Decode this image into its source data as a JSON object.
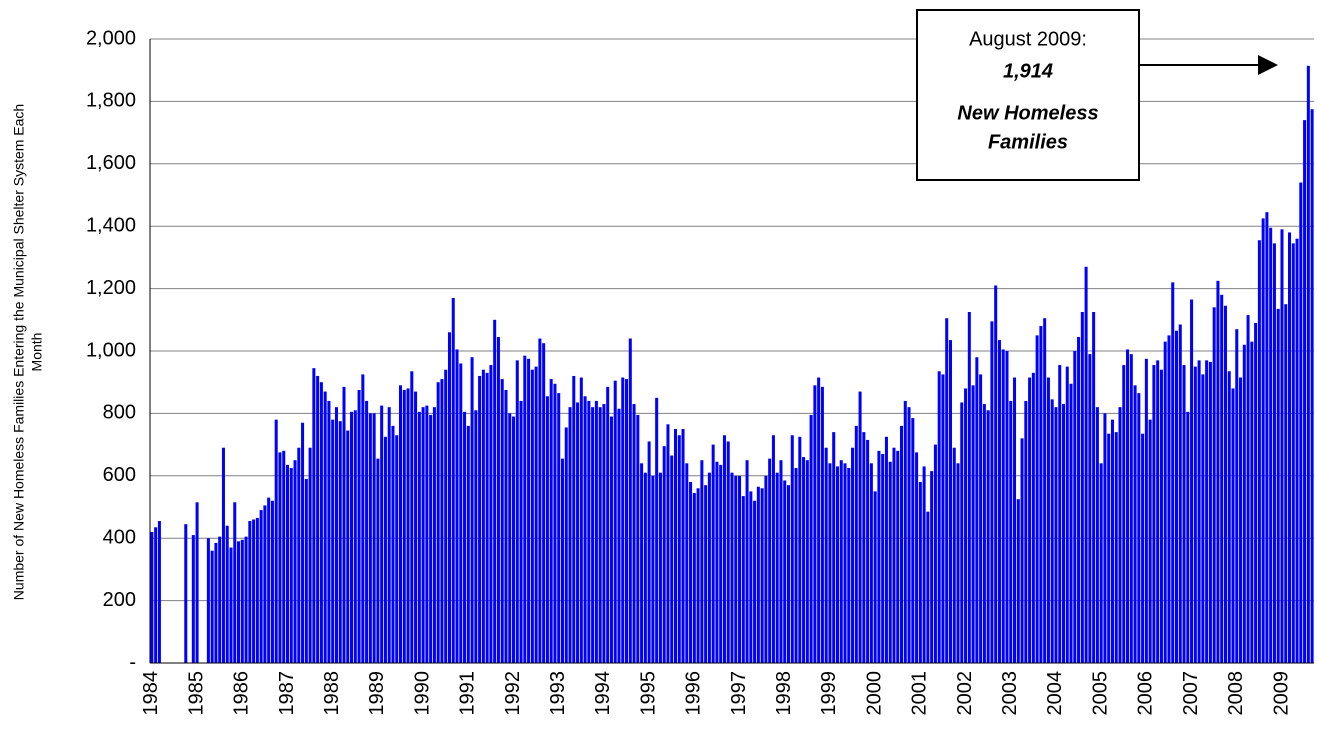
{
  "chart_data": {
    "type": "bar",
    "y_label": [
      "Number of New Homeless Families Entering the Municipal Shelter System Each",
      "Month"
    ],
    "annotation": [
      "August 2009:",
      "1,914",
      "New Homeless",
      "Families"
    ],
    "color": "#0000ff",
    "grid": true,
    "ylim": [
      0,
      2000
    ],
    "yticks": [
      {
        "value": 0,
        "label": "-"
      },
      200,
      400,
      600,
      800,
      {
        "value": 1000,
        "label": "1,000"
      },
      {
        "value": 1200,
        "label": "1,200"
      },
      {
        "value": 1400,
        "label": "1,400"
      },
      {
        "value": 1600,
        "label": "1,600"
      },
      {
        "value": 1800,
        "label": "1,800"
      },
      {
        "value": 2000,
        "label": "2,000"
      }
    ],
    "categories": [
      "1984",
      null,
      null,
      null,
      null,
      null,
      null,
      null,
      null,
      null,
      null,
      null,
      "1985",
      null,
      null,
      null,
      null,
      null,
      null,
      null,
      null,
      null,
      null,
      null,
      "1986",
      null,
      null,
      null,
      null,
      null,
      null,
      null,
      null,
      null,
      null,
      null,
      "1987",
      null,
      null,
      null,
      null,
      null,
      null,
      null,
      null,
      null,
      null,
      null,
      "1988",
      null,
      null,
      null,
      null,
      null,
      null,
      null,
      null,
      null,
      null,
      null,
      "1989",
      null,
      null,
      null,
      null,
      null,
      null,
      null,
      null,
      null,
      null,
      null,
      "1990",
      null,
      null,
      null,
      null,
      null,
      null,
      null,
      null,
      null,
      null,
      null,
      "1991",
      null,
      null,
      null,
      null,
      null,
      null,
      null,
      null,
      null,
      null,
      null,
      "1992",
      null,
      null,
      null,
      null,
      null,
      null,
      null,
      null,
      null,
      null,
      null,
      "1993",
      null,
      null,
      null,
      null,
      null,
      null,
      null,
      null,
      null,
      null,
      null,
      "1994",
      null,
      null,
      null,
      null,
      null,
      null,
      null,
      null,
      null,
      null,
      null,
      "1995",
      null,
      null,
      null,
      null,
      null,
      null,
      null,
      null,
      null,
      null,
      null,
      "1996",
      null,
      null,
      null,
      null,
      null,
      null,
      null,
      null,
      null,
      null,
      null,
      "1997",
      null,
      null,
      null,
      null,
      null,
      null,
      null,
      null,
      null,
      null,
      null,
      "1998",
      null,
      null,
      null,
      null,
      null,
      null,
      null,
      null,
      null,
      null,
      null,
      "1999",
      null,
      null,
      null,
      null,
      null,
      null,
      null,
      null,
      null,
      null,
      null,
      "2000",
      null,
      null,
      null,
      null,
      null,
      null,
      null,
      null,
      null,
      null,
      null,
      "2001",
      null,
      null,
      null,
      null,
      null,
      null,
      null,
      null,
      null,
      null,
      null,
      "2002",
      null,
      null,
      null,
      null,
      null,
      null,
      null,
      null,
      null,
      null,
      null,
      "2003",
      null,
      null,
      null,
      null,
      null,
      null,
      null,
      null,
      null,
      null,
      null,
      "2004",
      null,
      null,
      null,
      null,
      null,
      null,
      null,
      null,
      null,
      null,
      null,
      "2005",
      null,
      null,
      null,
      null,
      null,
      null,
      null,
      null,
      null,
      null,
      null,
      "2006",
      null,
      null,
      null,
      null,
      null,
      null,
      null,
      null,
      null,
      null,
      null,
      "2007",
      null,
      null,
      null,
      null,
      null,
      null,
      null,
      null,
      null,
      null,
      null,
      "2008",
      null,
      null,
      null,
      null,
      null,
      null,
      null,
      null,
      null,
      null,
      null,
      "2009",
      null,
      null,
      null,
      null,
      null,
      null,
      null,
      null
    ],
    "values": [
      420,
      435,
      455,
      null,
      null,
      null,
      null,
      null,
      null,
      445,
      null,
      410,
      515,
      null,
      null,
      400,
      360,
      385,
      405,
      690,
      440,
      370,
      515,
      390,
      395,
      405,
      455,
      460,
      465,
      490,
      505,
      530,
      520,
      780,
      675,
      680,
      635,
      625,
      650,
      690,
      770,
      590,
      690,
      945,
      920,
      900,
      870,
      840,
      780,
      820,
      775,
      885,
      745,
      805,
      810,
      875,
      925,
      840,
      800,
      800,
      655,
      825,
      725,
      820,
      760,
      730,
      890,
      875,
      880,
      935,
      870,
      805,
      820,
      825,
      795,
      820,
      900,
      910,
      940,
      1060,
      1170,
      1005,
      960,
      805,
      760,
      980,
      810,
      920,
      940,
      930,
      955,
      1100,
      1045,
      910,
      875,
      800,
      790,
      970,
      840,
      985,
      975,
      940,
      950,
      1040,
      1025,
      855,
      910,
      895,
      865,
      655,
      755,
      820,
      920,
      835,
      915,
      855,
      840,
      820,
      840,
      820,
      830,
      885,
      790,
      905,
      815,
      915,
      910,
      1040,
      830,
      795,
      640,
      610,
      710,
      600,
      850,
      610,
      695,
      765,
      665,
      750,
      730,
      750,
      640,
      580,
      545,
      560,
      650,
      570,
      610,
      700,
      645,
      635,
      730,
      710,
      610,
      600,
      600,
      535,
      650,
      550,
      520,
      565,
      560,
      600,
      655,
      730,
      610,
      650,
      585,
      570,
      730,
      625,
      725,
      660,
      650,
      795,
      890,
      915,
      885,
      690,
      640,
      740,
      630,
      650,
      640,
      625,
      690,
      760,
      870,
      740,
      715,
      640,
      550,
      680,
      670,
      725,
      645,
      690,
      680,
      760,
      840,
      820,
      785,
      675,
      580,
      630,
      485,
      615,
      700,
      935,
      925,
      1105,
      1035,
      690,
      640,
      835,
      880,
      1125,
      890,
      980,
      925,
      830,
      810,
      1095,
      1210,
      1035,
      1005,
      1000,
      840,
      915,
      525,
      720,
      840,
      915,
      930,
      1050,
      1080,
      1105,
      915,
      845,
      820,
      955,
      830,
      950,
      895,
      1000,
      1045,
      1125,
      1270,
      990,
      1125,
      820,
      640,
      800,
      735,
      780,
      740,
      820,
      955,
      1005,
      990,
      890,
      865,
      735,
      975,
      780,
      955,
      970,
      940,
      1030,
      1050,
      1220,
      1065,
      1085,
      955,
      805,
      1165,
      950,
      970,
      925,
      970,
      965,
      1140,
      1225,
      1180,
      1145,
      935,
      880,
      1070,
      915,
      1020,
      1115,
      1030,
      1090,
      1355,
      1425,
      1445,
      1395,
      1345,
      1135,
      1390,
      1150,
      1380,
      1345,
      1360,
      1540,
      1740,
      1914,
      1775
    ]
  }
}
